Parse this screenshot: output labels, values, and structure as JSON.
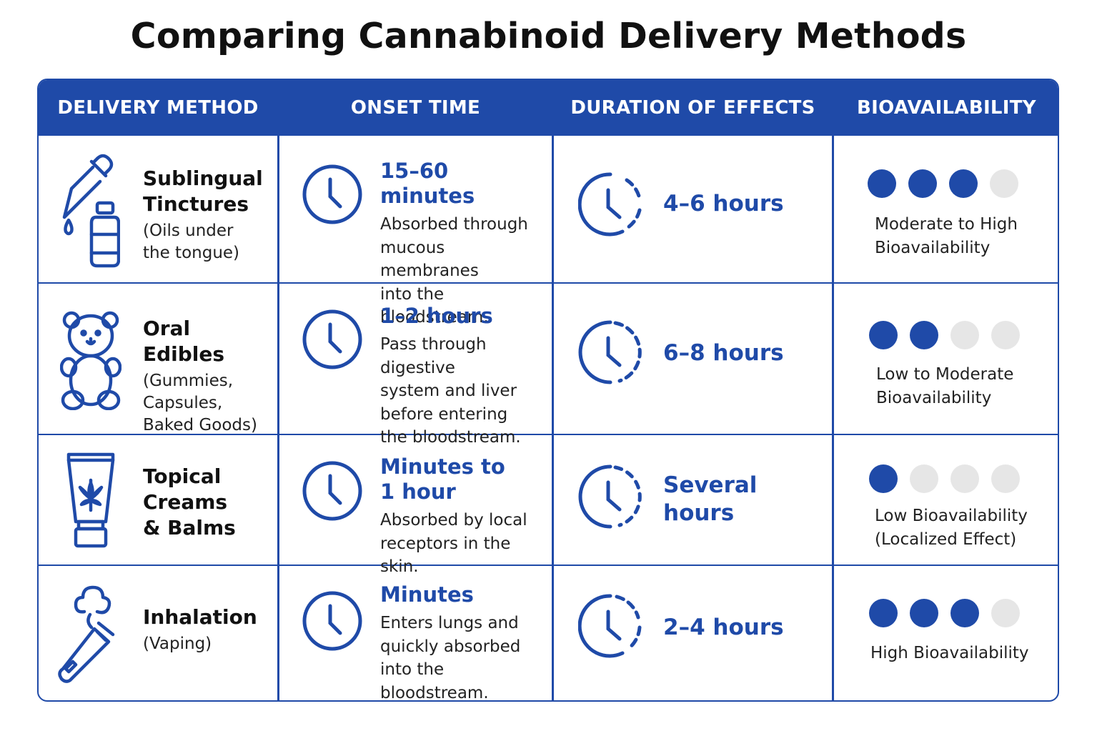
{
  "title": "Comparing Cannabinoid Delivery Methods",
  "colors": {
    "accent": "#1f4aa8",
    "dot_inactive": "#e6e6e6"
  },
  "headers": {
    "method": "DELIVERY METHOD",
    "onset": "ONSET TIME",
    "duration": "DURATION OF EFFECTS",
    "bioavailability": "BIOAVAILABILITY"
  },
  "rows": [
    {
      "icon": "dropper-bottle-icon",
      "name": "Sublingual\nTinctures",
      "detail": "(Oils under\nthe tongue)",
      "onset_time": "15–60 minutes",
      "onset_desc": "Absorbed through\nmucous membranes\ninto the bloodstream.",
      "duration": "4–6 hours",
      "bio_level": 3,
      "bio_max": 4,
      "bio_label": "Moderate to High\nBioavailability"
    },
    {
      "icon": "gummy-bear-icon",
      "name": "Oral Edibles",
      "detail": "(Gummies,\nCapsules,\nBaked Goods)",
      "onset_time": "1–2 hours",
      "onset_desc": "Pass through digestive\nsystem and liver\nbefore entering\nthe bloodstream.",
      "duration": "6–8 hours",
      "bio_level": 2,
      "bio_max": 4,
      "bio_label": "Low to Moderate\nBioavailability"
    },
    {
      "icon": "cream-tube-icon",
      "name": "Topical\nCreams\n& Balms",
      "detail": "",
      "onset_time": "Minutes to\n1 hour",
      "onset_desc": "Absorbed by local\nreceptors in the skin.",
      "duration": "Several\nhours",
      "bio_level": 1,
      "bio_max": 4,
      "bio_label": "Low Bioavailability\n(Localized Effect)"
    },
    {
      "icon": "vape-pen-icon",
      "name": "Inhalation",
      "detail": "(Vaping)",
      "onset_time": "Minutes",
      "onset_desc": "Enters lungs and\nquickly absorbed\ninto the bloodstream.",
      "duration": "2–4 hours",
      "bio_level": 3,
      "bio_max": 4,
      "bio_label": "High Bioavailability"
    }
  ]
}
